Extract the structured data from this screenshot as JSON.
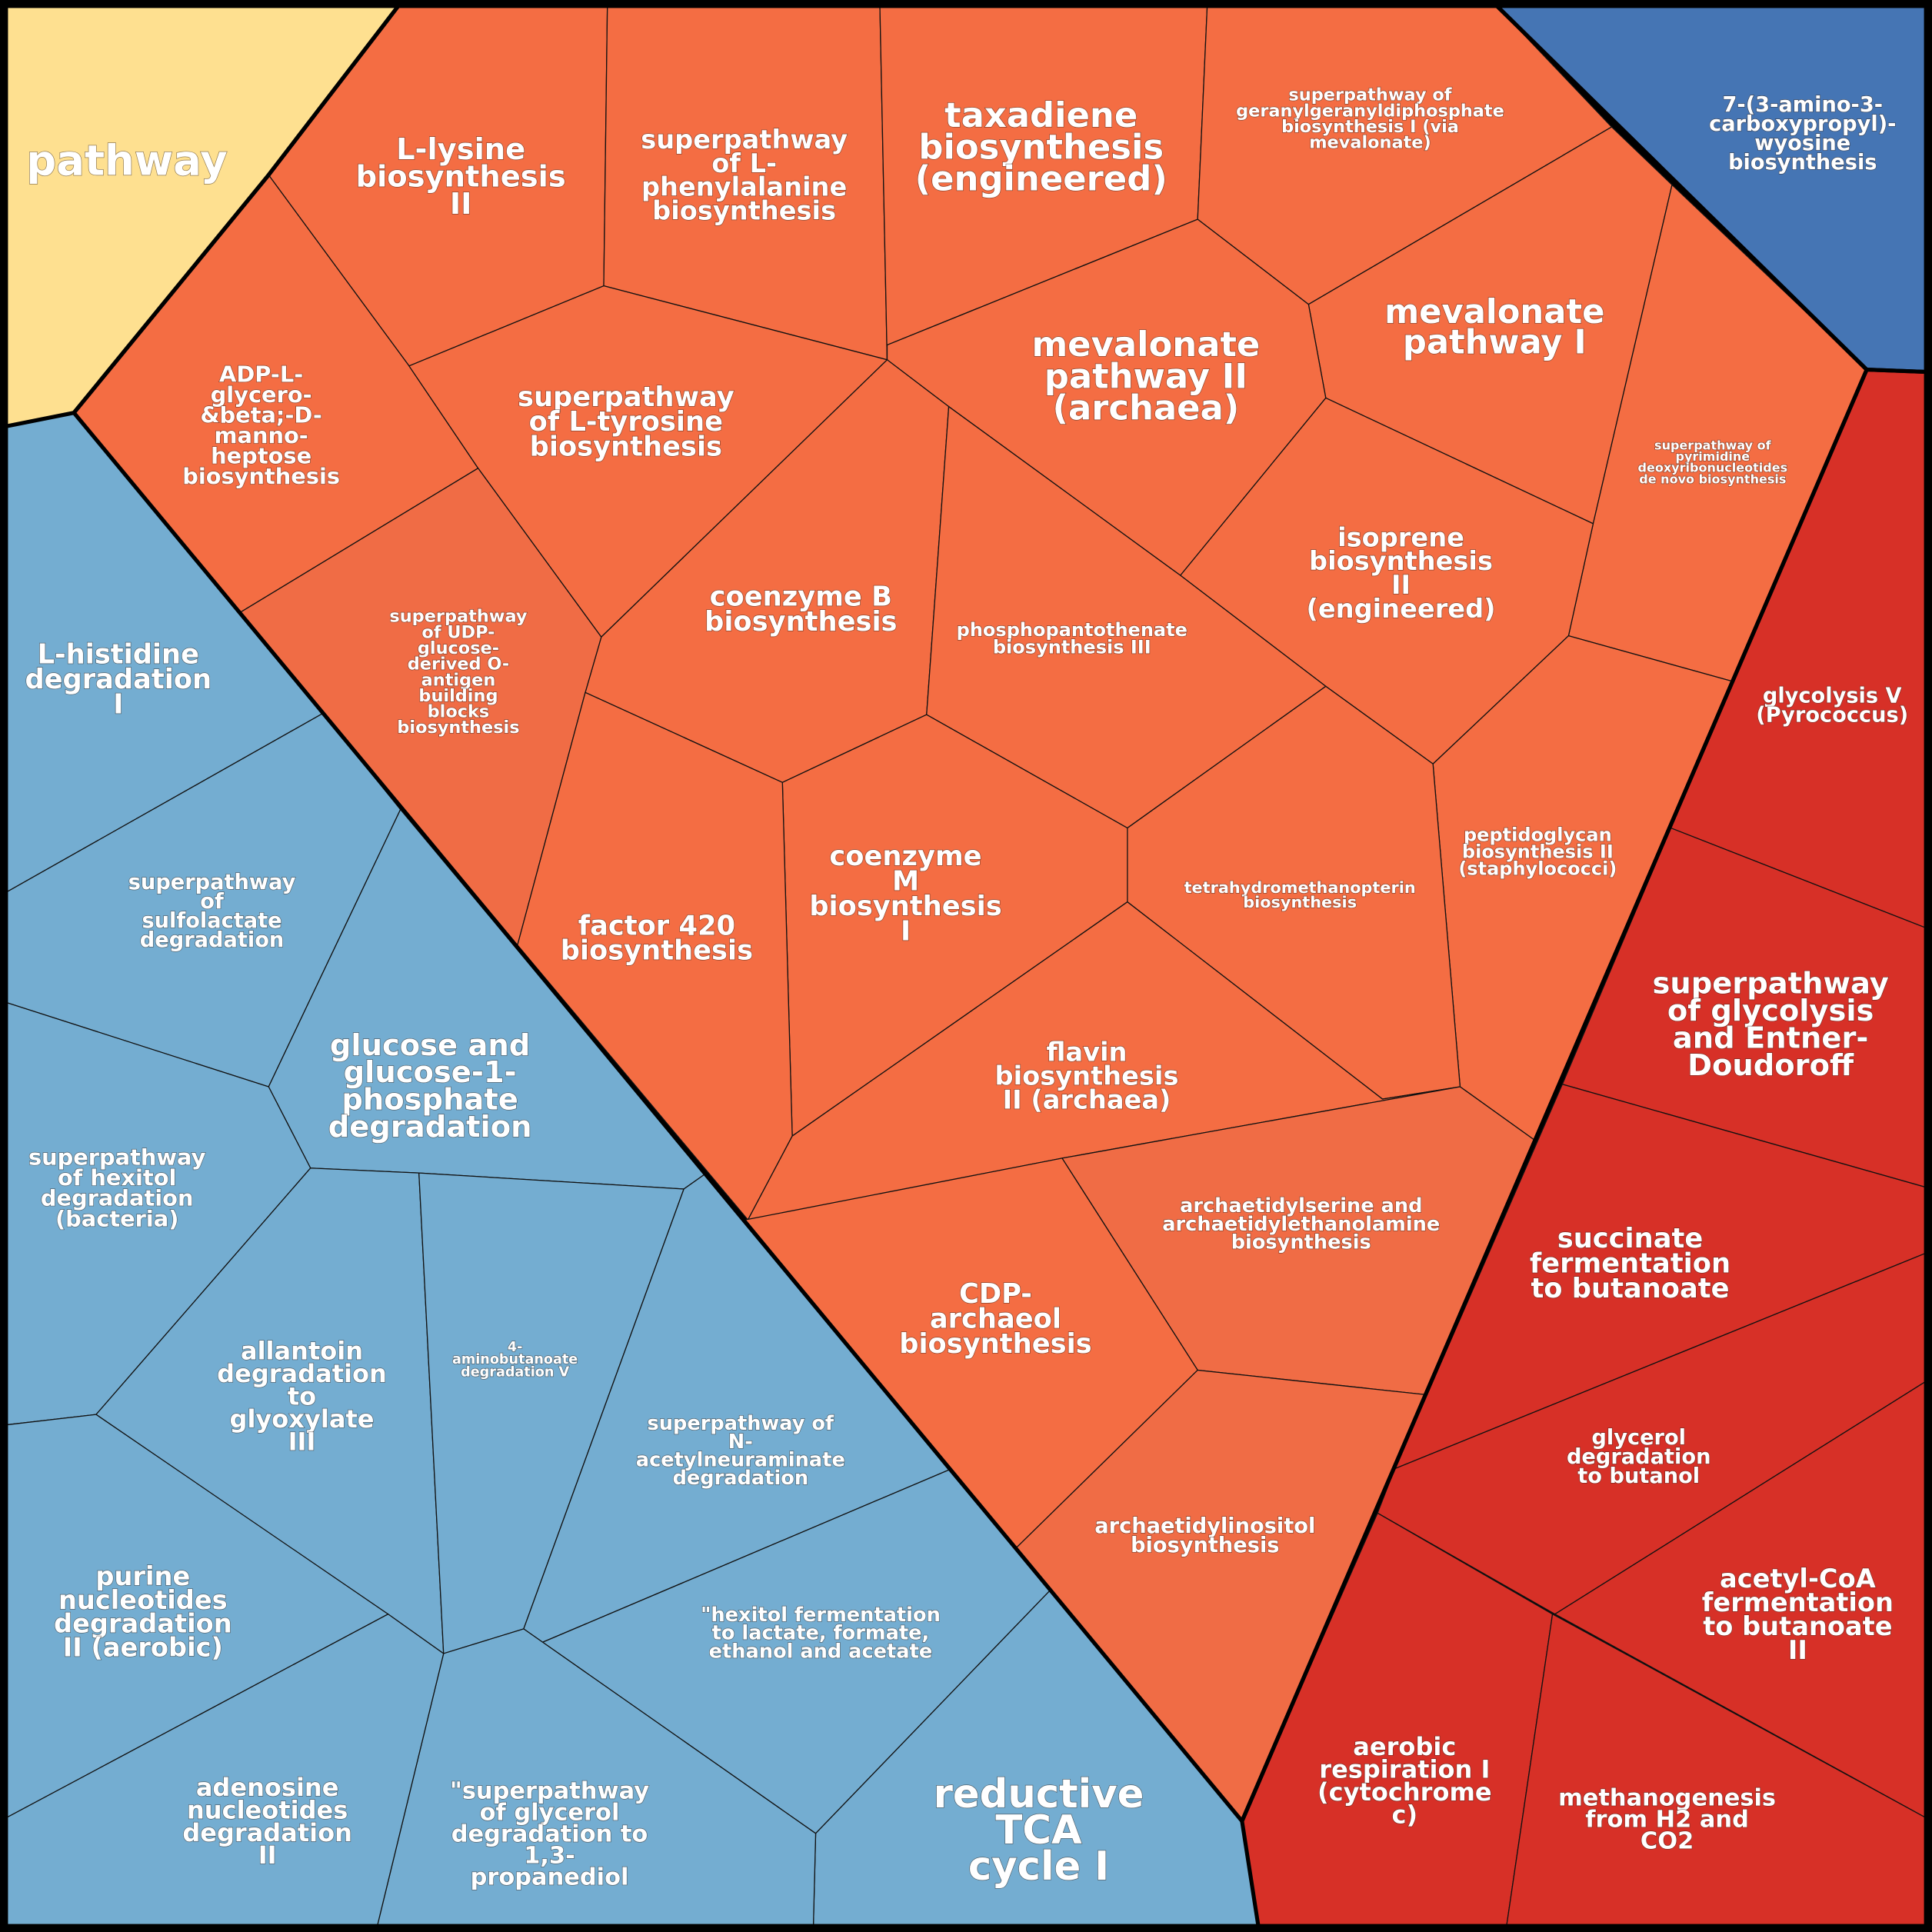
{
  "colors": {
    "yellow": "#fee090",
    "orange": "#f46d43",
    "orange2": "#f06c45",
    "red": "#d73027",
    "blue": "#74add1",
    "darkblue": "#4575b4"
  },
  "cells": [
    {
      "lines": [
        "pathway"
      ]
    },
    {
      "lines": [
        "L-lysine",
        "biosynthesis",
        "II"
      ]
    },
    {
      "lines": [
        "superpathway",
        "of L-",
        "phenylalanine",
        "biosynthesis"
      ]
    },
    {
      "lines": [
        "taxadiene",
        "biosynthesis",
        "(engineered)"
      ]
    },
    {
      "lines": [
        "superpathway of",
        "geranylgeranyldiphosphate",
        "biosynthesis I (via",
        "mevalonate)"
      ]
    },
    {
      "lines": [
        "7-(3-amino-3-",
        "carboxypropyl)-",
        "wyosine",
        "biosynthesis"
      ]
    },
    {
      "lines": [
        "mevalonate",
        "pathway I"
      ]
    },
    {
      "lines": [
        "mevalonate",
        "pathway II",
        "(archaea)"
      ]
    },
    {
      "lines": [
        "ADP-L-",
        "glycero-",
        "&beta;-D-",
        "manno-",
        "heptose",
        "biosynthesis"
      ]
    },
    {
      "lines": [
        "superpathway",
        "of L-tyrosine",
        "biosynthesis"
      ]
    },
    {
      "lines": [
        "superpathway of",
        "pyrimidine",
        "deoxyribonucleotides",
        "de novo biosynthesis"
      ]
    },
    {
      "lines": [
        "coenzyme B",
        "biosynthesis"
      ]
    },
    {
      "lines": [
        "isoprene",
        "biosynthesis",
        "II",
        "(engineered)"
      ]
    },
    {
      "lines": [
        "phosphopantothenate",
        "biosynthesis III"
      ]
    },
    {
      "lines": [
        "superpathway",
        "of UDP-",
        "glucose-",
        "derived O-",
        "antigen",
        "building",
        "blocks",
        "biosynthesis"
      ]
    },
    {
      "lines": [
        "L-histidine",
        "degradation",
        "I"
      ]
    },
    {
      "lines": [
        "glycolysis V",
        "(Pyrococcus)"
      ]
    },
    {
      "lines": [
        "peptidoglycan",
        "biosynthesis II",
        "(staphylococci)"
      ]
    },
    {
      "lines": [
        "superpathway",
        "of",
        "sulfolactate",
        "degradation"
      ]
    },
    {
      "lines": [
        "tetrahydromethanopterin",
        "biosynthesis"
      ]
    },
    {
      "lines": [
        "coenzyme",
        "M",
        "biosynthesis",
        "I"
      ]
    },
    {
      "lines": [
        "factor 420",
        "biosynthesis"
      ]
    },
    {
      "lines": [
        "superpathway",
        "of glycolysis",
        "and Entner-",
        "Doudoroff"
      ]
    },
    {
      "lines": [
        "glucose and",
        "glucose-1-",
        "phosphate",
        "degradation"
      ]
    },
    {
      "lines": [
        "flavin",
        "biosynthesis",
        "II (archaea)"
      ]
    },
    {
      "lines": [
        "superpathway",
        "of hexitol",
        "degradation",
        "(bacteria)"
      ]
    },
    {
      "lines": [
        "archaetidylserine and",
        "archaetidylethanolamine",
        "biosynthesis"
      ]
    },
    {
      "lines": [
        "succinate",
        "fermentation",
        "to butanoate"
      ]
    },
    {
      "lines": [
        "CDP-",
        "archaeol",
        "biosynthesis"
      ]
    },
    {
      "lines": [
        "4-",
        "aminobutanoate",
        "degradation V"
      ]
    },
    {
      "lines": [
        "allantoin",
        "degradation",
        "to",
        "glyoxylate",
        "III"
      ]
    },
    {
      "lines": [
        "superpathway of",
        "N-",
        "acetylneuraminate",
        "degradation"
      ]
    },
    {
      "lines": [
        "glycerol",
        "degradation",
        "to butanol"
      ]
    },
    {
      "lines": [
        "archaetidylinositol",
        "biosynthesis"
      ]
    },
    {
      "lines": [
        "acetyl-CoA",
        "fermentation",
        "to butanoate",
        "II"
      ]
    },
    {
      "lines": [
        "\"hexitol fermentation",
        "to lactate, formate,",
        "ethanol and acetate"
      ]
    },
    {
      "lines": [
        "purine",
        "nucleotides",
        "degradation",
        "II (aerobic)"
      ]
    },
    {
      "lines": [
        "aerobic",
        "respiration I",
        "(cytochrome",
        "c)"
      ]
    },
    {
      "lines": [
        "reductive",
        "TCA",
        "cycle I"
      ]
    },
    {
      "lines": [
        "methanogenesis",
        "from H2 and",
        "CO2"
      ]
    },
    {
      "lines": [
        "adenosine",
        "nucleotides",
        "degradation",
        "II"
      ]
    },
    {
      "lines": [
        "\"superpathway",
        "of glycerol",
        "degradation to",
        "1,3-",
        "propanediol"
      ]
    }
  ]
}
